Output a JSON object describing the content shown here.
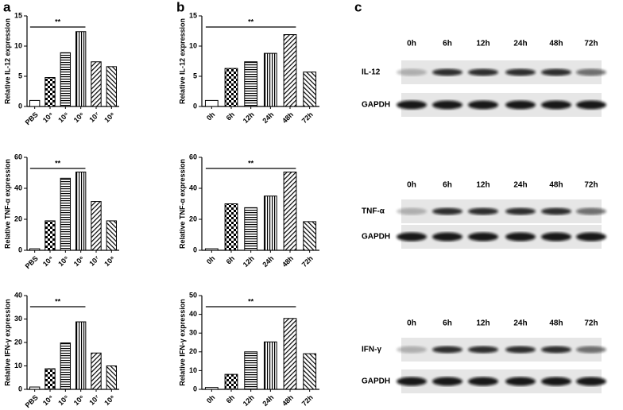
{
  "panels": [
    "a",
    "b",
    "c"
  ],
  "chart_data": [
    {
      "type": "bar",
      "y_label": "Relative IL-12 expression",
      "annotation": "**",
      "categories": [
        "PBS",
        "10⁴",
        "10⁵",
        "10⁶",
        "10⁷",
        "10⁸"
      ],
      "values": [
        1,
        4.8,
        8.9,
        12.4,
        7.4,
        6.6
      ],
      "color": "#000000",
      "ylim": [
        0,
        15
      ],
      "yticks": [
        0,
        5,
        10,
        15
      ]
    },
    {
      "type": "bar",
      "y_label": "Relative IL-12 expression",
      "annotation": "**",
      "categories": [
        "0h",
        "6h",
        "12h",
        "24h",
        "48h",
        "72h"
      ],
      "values": [
        1,
        6.3,
        7.4,
        8.8,
        11.9,
        5.7
      ],
      "color": "#000000",
      "ylim": [
        0,
        15
      ],
      "yticks": [
        0,
        5,
        10,
        15
      ]
    },
    {
      "type": "bar",
      "y_label": "Relative TNF-α expression",
      "annotation": "**",
      "categories": [
        "PBS",
        "10⁴",
        "10⁵",
        "10⁶",
        "10⁷",
        "10⁸"
      ],
      "values": [
        1,
        19,
        46.5,
        50.5,
        31.5,
        19
      ],
      "color": "#000000",
      "ylim": [
        0,
        60
      ],
      "yticks": [
        0,
        20,
        40,
        60
      ]
    },
    {
      "type": "bar",
      "y_label": "Relative TNF-α expression",
      "annotation": "**",
      "categories": [
        "0h",
        "6h",
        "12h",
        "24h",
        "48h",
        "72h"
      ],
      "values": [
        1,
        30,
        27.5,
        35,
        50.5,
        18.5
      ],
      "color": "#000000",
      "ylim": [
        0,
        60
      ],
      "yticks": [
        0,
        20,
        40,
        60
      ]
    },
    {
      "type": "bar",
      "y_label": "Relative IFN-γ expression",
      "annotation": "**",
      "categories": [
        "PBS",
        "10⁴",
        "10⁵",
        "10⁶",
        "10⁷",
        "10⁸"
      ],
      "values": [
        1,
        8.8,
        19.8,
        28.8,
        15.5,
        10
      ],
      "color": "#000000",
      "ylim": [
        0,
        40
      ],
      "yticks": [
        0,
        10,
        20,
        30,
        40
      ]
    },
    {
      "type": "bar",
      "y_label": "Relative IFN-γ expression",
      "annotation": "**",
      "categories": [
        "0h",
        "6h",
        "12h",
        "24h",
        "48h",
        "72h"
      ],
      "values": [
        1,
        8,
        20,
        25.3,
        37.8,
        19
      ],
      "color": "#000000",
      "ylim": [
        0,
        50
      ],
      "yticks": [
        0,
        10,
        20,
        30,
        40,
        50
      ]
    }
  ],
  "blots": [
    {
      "lanes": [
        "0h",
        "6h",
        "12h",
        "24h",
        "48h",
        "72h"
      ],
      "rows": [
        "IL-12",
        "GAPDH"
      ]
    },
    {
      "lanes": [
        "0h",
        "6h",
        "12h",
        "24h",
        "48h",
        "72h"
      ],
      "rows": [
        "TNF-α",
        "GAPDH"
      ]
    },
    {
      "lanes": [
        "0h",
        "6h",
        "12h",
        "24h",
        "48h",
        "72h"
      ],
      "rows": [
        "IFN-γ",
        "GAPDH"
      ]
    }
  ]
}
